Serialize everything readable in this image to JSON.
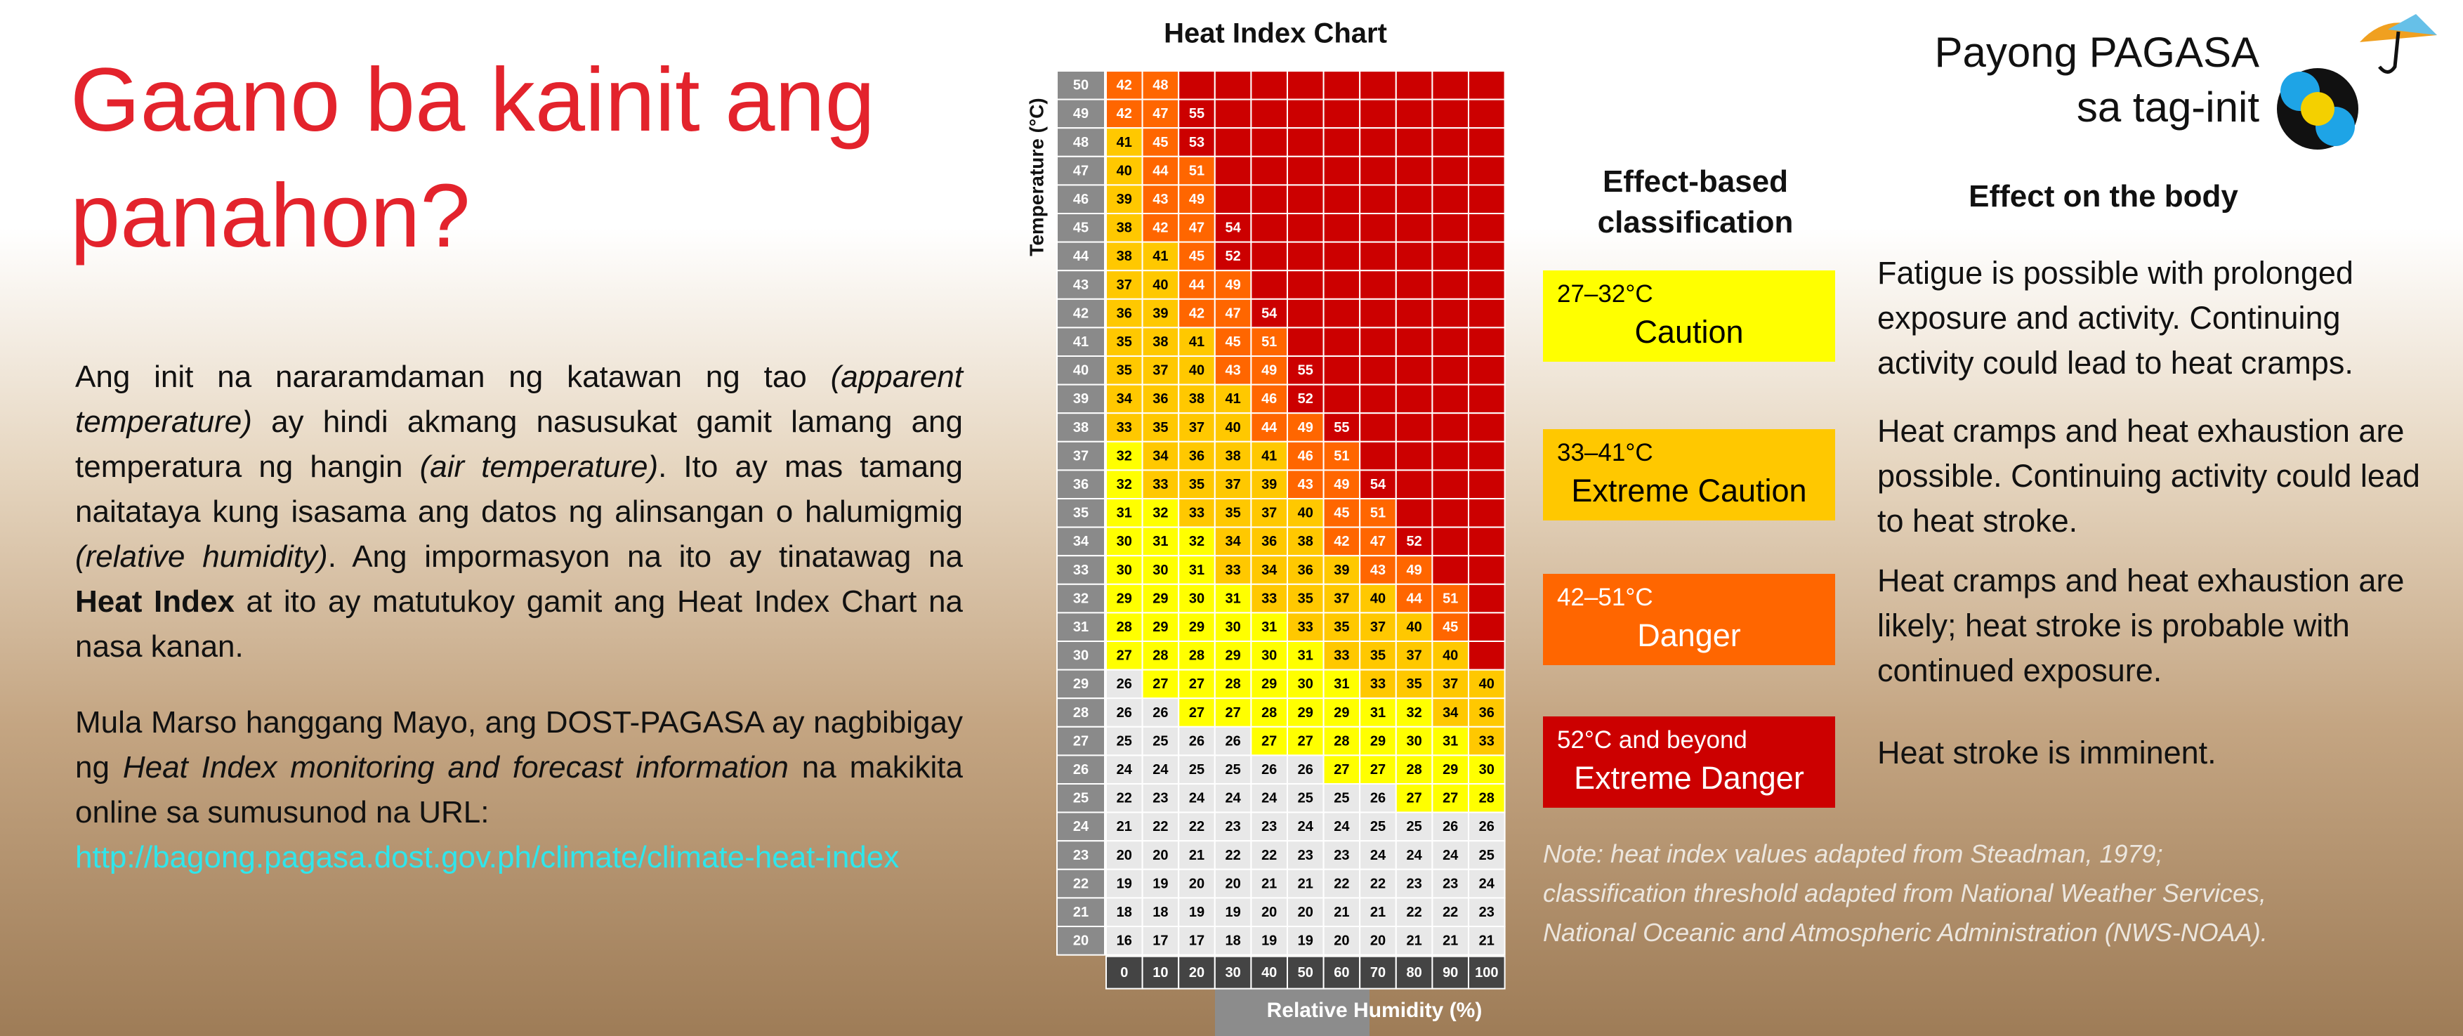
{
  "title": "Gaano ba kainit ang panahon?",
  "paragraphs": [
    [
      {
        "text": "Ang init na nararamdaman ng katawan ng tao ",
        "style": "normal"
      },
      {
        "text": "(apparent temperature)",
        "style": "italic"
      },
      {
        "text": " ay hindi akmang nasusukat gamit lamang ang temperatura ng hangin ",
        "style": "normal"
      },
      {
        "text": "(air temperature)",
        "style": "italic"
      },
      {
        "text": ". Ito ay mas tamang naitataya kung isasama ang datos ng alinsangan o halumigmig ",
        "style": "normal"
      },
      {
        "text": "(relative humidity)",
        "style": "italic"
      },
      {
        "text": ". Ang impormasyon na ito ay tinatawag na ",
        "style": "normal"
      },
      {
        "text": "Heat Index",
        "style": "bold"
      },
      {
        "text": " at ito ay matutukoy gamit ang Heat Index Chart na nasa kanan.",
        "style": "normal"
      }
    ],
    [
      {
        "text": "Mula Marso hanggang Mayo, ang DOST-PAGASA ay nagbibigay ng ",
        "style": "normal"
      },
      {
        "text": "Heat Index monitoring and forecast information",
        "style": "italic"
      },
      {
        "text": " na makikita online sa sumusunod na URL:",
        "style": "normal"
      }
    ]
  ],
  "url": "http://bagong.pagasa.dost.gov.ph/climate/climate-heat-index",
  "brand": [
    "Payong PAGASA",
    "sa tag-init"
  ],
  "heat_index": {
    "title": "Heat Index Chart",
    "y_label": "Temperature (°C)",
    "x_label": "Relative Humidity (%)",
    "humidity": [
      0,
      10,
      20,
      30,
      40,
      50,
      60,
      70,
      80,
      90,
      100
    ],
    "rows": [
      {
        "temperature": 50,
        "values": [
          42,
          48,
          null,
          null,
          null,
          null,
          null,
          null,
          null,
          null,
          null
        ]
      },
      {
        "temperature": 49,
        "values": [
          42,
          47,
          55,
          null,
          null,
          null,
          null,
          null,
          null,
          null,
          null
        ]
      },
      {
        "temperature": 48,
        "values": [
          41,
          45,
          53,
          null,
          null,
          null,
          null,
          null,
          null,
          null,
          null
        ]
      },
      {
        "temperature": 47,
        "values": [
          40,
          44,
          51,
          null,
          null,
          null,
          null,
          null,
          null,
          null,
          null
        ]
      },
      {
        "temperature": 46,
        "values": [
          39,
          43,
          49,
          null,
          null,
          null,
          null,
          null,
          null,
          null,
          null
        ]
      },
      {
        "temperature": 45,
        "values": [
          38,
          42,
          47,
          54,
          null,
          null,
          null,
          null,
          null,
          null,
          null
        ]
      },
      {
        "temperature": 44,
        "values": [
          38,
          41,
          45,
          52,
          null,
          null,
          null,
          null,
          null,
          null,
          null
        ]
      },
      {
        "temperature": 43,
        "values": [
          37,
          40,
          44,
          49,
          null,
          null,
          null,
          null,
          null,
          null,
          null
        ]
      },
      {
        "temperature": 42,
        "values": [
          36,
          39,
          42,
          47,
          54,
          null,
          null,
          null,
          null,
          null,
          null
        ]
      },
      {
        "temperature": 41,
        "values": [
          35,
          38,
          41,
          45,
          51,
          null,
          null,
          null,
          null,
          null,
          null
        ]
      },
      {
        "temperature": 40,
        "values": [
          35,
          37,
          40,
          43,
          49,
          55,
          null,
          null,
          null,
          null,
          null
        ]
      },
      {
        "temperature": 39,
        "values": [
          34,
          36,
          38,
          41,
          46,
          52,
          null,
          null,
          null,
          null,
          null
        ]
      },
      {
        "temperature": 38,
        "values": [
          33,
          35,
          37,
          40,
          44,
          49,
          55,
          null,
          null,
          null,
          null
        ]
      },
      {
        "temperature": 37,
        "values": [
          32,
          34,
          36,
          38,
          41,
          46,
          51,
          null,
          null,
          null,
          null
        ]
      },
      {
        "temperature": 36,
        "values": [
          32,
          33,
          35,
          37,
          39,
          43,
          49,
          54,
          null,
          null,
          null
        ]
      },
      {
        "temperature": 35,
        "values": [
          31,
          32,
          33,
          35,
          37,
          40,
          45,
          51,
          null,
          null,
          null
        ]
      },
      {
        "temperature": 34,
        "values": [
          30,
          31,
          32,
          34,
          36,
          38,
          42,
          47,
          52,
          null,
          null
        ]
      },
      {
        "temperature": 33,
        "values": [
          30,
          30,
          31,
          33,
          34,
          36,
          39,
          43,
          49,
          null,
          null
        ]
      },
      {
        "temperature": 32,
        "values": [
          29,
          29,
          30,
          31,
          33,
          35,
          37,
          40,
          44,
          51,
          null
        ]
      },
      {
        "temperature": 31,
        "values": [
          28,
          29,
          29,
          30,
          31,
          33,
          35,
          37,
          40,
          45,
          null
        ]
      },
      {
        "temperature": 30,
        "values": [
          27,
          28,
          28,
          29,
          30,
          31,
          33,
          35,
          37,
          40,
          null
        ]
      },
      {
        "temperature": 29,
        "values": [
          26,
          27,
          27,
          28,
          29,
          30,
          31,
          33,
          35,
          37,
          40
        ]
      },
      {
        "temperature": 28,
        "values": [
          26,
          26,
          27,
          27,
          28,
          29,
          29,
          31,
          32,
          34,
          36
        ]
      },
      {
        "temperature": 27,
        "values": [
          25,
          25,
          26,
          26,
          27,
          27,
          28,
          29,
          30,
          31,
          33
        ]
      },
      {
        "temperature": 26,
        "values": [
          24,
          24,
          25,
          25,
          26,
          26,
          27,
          27,
          28,
          29,
          30
        ]
      },
      {
        "temperature": 25,
        "values": [
          22,
          23,
          24,
          24,
          24,
          25,
          25,
          26,
          27,
          27,
          28
        ]
      },
      {
        "temperature": 24,
        "values": [
          21,
          22,
          22,
          23,
          23,
          24,
          24,
          25,
          25,
          26,
          26
        ]
      },
      {
        "temperature": 23,
        "values": [
          20,
          20,
          21,
          22,
          22,
          23,
          23,
          24,
          24,
          24,
          25
        ]
      },
      {
        "temperature": 22,
        "values": [
          19,
          19,
          20,
          20,
          21,
          21,
          22,
          22,
          23,
          23,
          24
        ]
      },
      {
        "temperature": 21,
        "values": [
          18,
          18,
          19,
          19,
          20,
          20,
          21,
          21,
          22,
          22,
          23
        ]
      },
      {
        "temperature": 20,
        "values": [
          16,
          17,
          17,
          18,
          19,
          19,
          20,
          20,
          21,
          21,
          21
        ]
      }
    ],
    "below_color": "#e8e8e8"
  },
  "classification_header": "Effect-based classification",
  "effect_header": "Effect on the body",
  "classes": [
    {
      "range": "27–32°C",
      "label": "Caution",
      "color": "#ffff00",
      "text_color": "#000000",
      "effect": "Fatigue is possible with prolonged exposure and activity. Continuing activity could lead to heat cramps."
    },
    {
      "range": "33–41°C",
      "label": "Extreme Caution",
      "color": "#ffc800",
      "text_color": "#000000",
      "effect": "Heat cramps and heat exhaustion are possible. Continuing activity could lead to heat stroke."
    },
    {
      "range": "42–51°C",
      "label": "Danger",
      "color": "#ff6600",
      "text_color": "#ffffff",
      "effect": "Heat cramps and heat exhaustion are likely; heat stroke is probable with continued exposure."
    },
    {
      "range": "52°C and beyond",
      "label": "Extreme Danger",
      "color": "#cc0000",
      "text_color": "#ffffff",
      "effect": "Heat stroke is imminent."
    }
  ],
  "note": "Note: heat index values adapted from Steadman, 1979; classification threshold adapted from National Weather Services, National Oceanic and Atmospheric Administration (NWS-NOAA)."
}
